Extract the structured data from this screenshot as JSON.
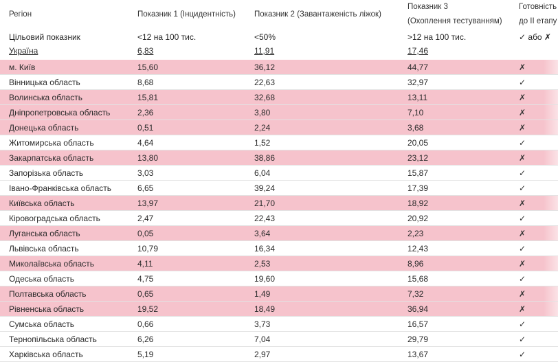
{
  "header": {
    "col_region": "Регіон",
    "col_p1": "Показник 1 (Інцидентність)",
    "col_p2": "Показник 2 (Завантаженість ліжок)",
    "col_p3_line1": "Показник 3",
    "col_p3_line2": "(Охоплення тестуванням)",
    "col_ready_line1": "Готовність",
    "col_ready_line2": "до ІІ етапу"
  },
  "target_row": {
    "label": "Цільовий показник",
    "p1": "<12 на 100 тис.",
    "p2": "<50%",
    "p3": ">12 на 100 тис.",
    "ready": "✓ або ✗"
  },
  "total_row": {
    "label": "Україна",
    "p1": "6,83",
    "p2": "11,91",
    "p3": "17,46"
  },
  "colors": {
    "highlight": "#f6c3cc",
    "divider": "#e3e3e3"
  },
  "rows": [
    {
      "region": "м. Київ",
      "p1": "15,60",
      "p2": "36,12",
      "p3": "44,77",
      "ready": "✗",
      "highlight": true
    },
    {
      "region": "Вінницька область",
      "p1": "8,68",
      "p2": "22,63",
      "p3": "32,97",
      "ready": "✓",
      "highlight": false
    },
    {
      "region": "Волинська область",
      "p1": "15,81",
      "p2": "32,68",
      "p3": "13,11",
      "ready": "✗",
      "highlight": true
    },
    {
      "region": "Дніпропетровська область",
      "p1": "2,36",
      "p2": "3,80",
      "p3": "7,10",
      "ready": "✗",
      "highlight": true
    },
    {
      "region": "Донецька область",
      "p1": "0,51",
      "p2": "2,24",
      "p3": "3,68",
      "ready": "✗",
      "highlight": true
    },
    {
      "region": "Житомирська область",
      "p1": "4,64",
      "p2": "1,52",
      "p3": "20,05",
      "ready": "✓",
      "highlight": false
    },
    {
      "region": "Закарпатська область",
      "p1": "13,80",
      "p2": "38,86",
      "p3": "23,12",
      "ready": "✗",
      "highlight": true
    },
    {
      "region": "Запорізька область",
      "p1": "3,03",
      "p2": "6,04",
      "p3": "15,87",
      "ready": "✓",
      "highlight": false
    },
    {
      "region": "Івано-Франківська область",
      "p1": "6,65",
      "p2": "39,24",
      "p3": "17,39",
      "ready": "✓",
      "highlight": false
    },
    {
      "region": "Київська область",
      "p1": "13,97",
      "p2": "21,70",
      "p3": "18,92",
      "ready": "✗",
      "highlight": true
    },
    {
      "region": "Кіровоградська область",
      "p1": "2,47",
      "p2": "22,43",
      "p3": "20,92",
      "ready": "✓",
      "highlight": false
    },
    {
      "region": "Луганська область",
      "p1": "0,05",
      "p2": "3,64",
      "p3": "2,23",
      "ready": "✗",
      "highlight": true
    },
    {
      "region": "Львівська область",
      "p1": "10,79",
      "p2": "16,34",
      "p3": "12,43",
      "ready": "✓",
      "highlight": false
    },
    {
      "region": "Миколаївська область",
      "p1": "4,11",
      "p2": "2,53",
      "p3": "8,96",
      "ready": "✗",
      "highlight": true
    },
    {
      "region": "Одеська область",
      "p1": "4,75",
      "p2": "19,60",
      "p3": "15,68",
      "ready": "✓",
      "highlight": false
    },
    {
      "region": "Полтавська область",
      "p1": "0,65",
      "p2": "1,49",
      "p3": "7,32",
      "ready": "✗",
      "highlight": true
    },
    {
      "region": "Рівненська область",
      "p1": "19,52",
      "p2": "18,49",
      "p3": "36,94",
      "ready": "✗",
      "highlight": true
    },
    {
      "region": "Сумська область",
      "p1": "0,66",
      "p2": "3,73",
      "p3": "16,57",
      "ready": "✓",
      "highlight": false
    },
    {
      "region": "Тернопільська область",
      "p1": "6,26",
      "p2": "7,04",
      "p3": "29,79",
      "ready": "✓",
      "highlight": false
    },
    {
      "region": "Харківська область",
      "p1": "5,19",
      "p2": "2,97",
      "p3": "13,67",
      "ready": "✓",
      "highlight": false
    }
  ]
}
